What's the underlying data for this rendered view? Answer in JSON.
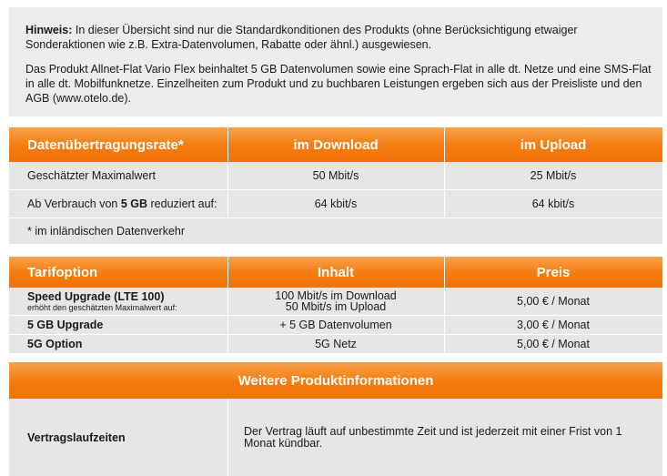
{
  "notice": {
    "label": "Hinweis:",
    "line1": " In dieser Übersicht sind nur die Standardkonditionen des Produkts (ohne Berücksichtigung etwaiger Sonderaktionen wie z.B. Extra-Datenvolumen, Rabatte oder ähnl.) ausgewiesen.",
    "line2": "Das Produkt Allnet-Flat Vario Flex beinhaltet 5 GB Datenvolumen sowie eine Sprach-Flat in alle dt. Netze und eine SMS-Flat in alle dt. Mobilfunknetze. Einzelheiten zum Produkt und zu buchbaren Leistungen ergeben sich aus der Preisliste und den AGB (www.otelo.de)."
  },
  "speed": {
    "headers": [
      "Datenübertragungsrate*",
      "im Download",
      "im Upload"
    ],
    "row1": {
      "label": "Geschätzter Maximalwert",
      "download": "50 Mbit/s",
      "upload": "25 Mbit/s"
    },
    "row2": {
      "label_pre": "Ab Verbrauch von ",
      "label_bold": "5 GB",
      "label_post": " reduziert auf:",
      "download": "64 kbit/s",
      "upload": "64 kbit/s"
    },
    "footnote": "* im inländischen Datenverkehr"
  },
  "options": {
    "headers": [
      "Tarifoption",
      "Inhalt",
      "Preis"
    ],
    "rows": [
      {
        "name": "Speed Upgrade (LTE 100)",
        "sub": "erhöht den geschätzten Maximalwert auf:",
        "content1": "100 Mbit/s im Download",
        "content2": "50 Mbit/s im Upload",
        "price": "5,00 € / Monat"
      },
      {
        "name": "5 GB Upgrade",
        "content": "+ 5 GB Datenvolumen",
        "price": "3,00 € / Monat"
      },
      {
        "name": "5G Option",
        "content": "5G Netz",
        "price": "5,00 € / Monat"
      }
    ]
  },
  "more": {
    "title": "Weitere Produktinformationen",
    "label": "Vertragslaufzeiten",
    "text": "Der Vertrag läuft auf unbestimmte Zeit und ist jederzeit mit einer Frist von 1 Monat kündbar."
  },
  "colors": {
    "accent": "#f47c0f",
    "panel": "#e6e6e6"
  }
}
